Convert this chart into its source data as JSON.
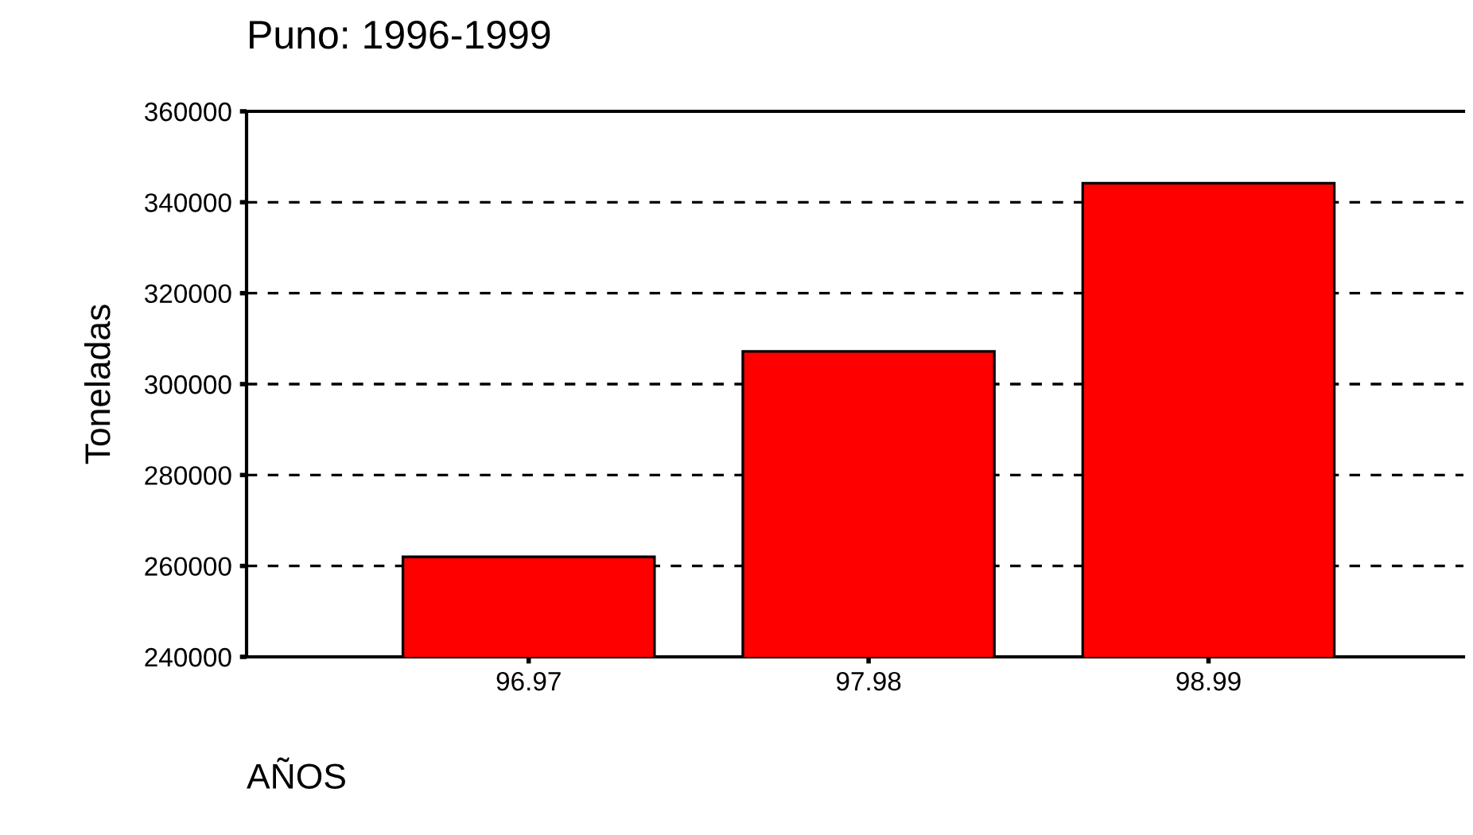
{
  "chart_data": {
    "type": "bar",
    "title": "Puno: 1996-1999",
    "xlabel": "AÑOS",
    "ylabel": "Toneladas",
    "categories": [
      "96.97",
      "97.98",
      "98.99"
    ],
    "values": [
      262000,
      307200,
      344200
    ],
    "color": "#ff0000",
    "ylim": [
      240000,
      360000
    ],
    "yticks": [
      240000,
      260000,
      280000,
      300000,
      320000,
      340000,
      360000
    ],
    "grid": "y"
  }
}
